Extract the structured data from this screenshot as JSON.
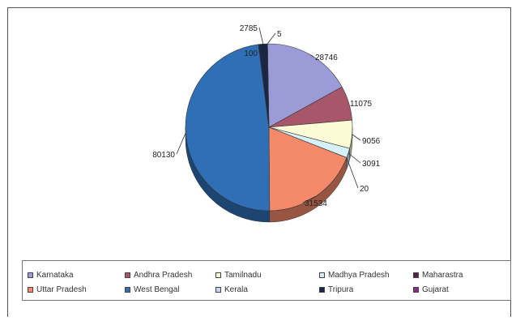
{
  "chart_data": {
    "type": "pie",
    "title": "",
    "legend_position": "bottom",
    "slices": [
      {
        "name": "Karnataka",
        "value": 28746,
        "color": "#9b9bd8"
      },
      {
        "name": "Andhra Pradesh",
        "value": 11075,
        "color": "#a8566a"
      },
      {
        "name": "Tamilnadu",
        "value": 9056,
        "color": "#fbfbd6"
      },
      {
        "name": "Madhya Pradesh",
        "value": 3091,
        "color": "#d6f0f8"
      },
      {
        "name": "Maharastra",
        "value": 20,
        "color": "#5a1f4e"
      },
      {
        "name": "Uttar Pradesh",
        "value": 31534,
        "color": "#f58a6b"
      },
      {
        "name": "West Bengal",
        "value": 80130,
        "color": "#2f6fb6"
      },
      {
        "name": "Kerala",
        "value": 100,
        "color": "#c9d4f0"
      },
      {
        "name": "Tripura",
        "value": 2785,
        "color": "#1a2744"
      },
      {
        "name": "Gujarat",
        "value": 5,
        "color": "#8a2c86"
      }
    ],
    "data_labels": [
      "28746",
      "11075",
      "9056",
      "3091",
      "20",
      "31534",
      "80130",
      "100",
      "2785",
      "5"
    ]
  }
}
